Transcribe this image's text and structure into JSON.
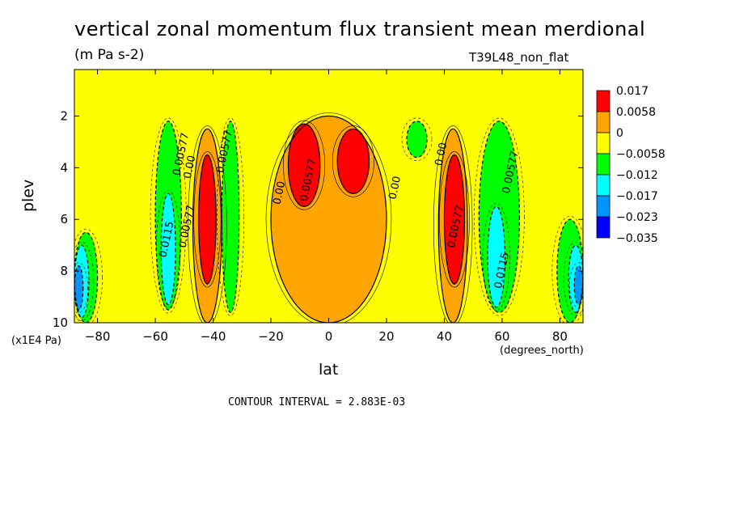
{
  "title": "vertical zonal momentum flux transient mean merdional",
  "units": "(m Pa s-2)",
  "run_label": "T39L48_non_flat",
  "contour_interval_text": "CONTOUR INTERVAL = 2.883E-03",
  "y_unit_text": "(x1E4 Pa)",
  "x_unit_text": "(degrees_north)",
  "chart_data": {
    "type": "heatmap",
    "xlabel": "lat",
    "ylabel": "plev",
    "x_ticks": [
      -80,
      -60,
      -40,
      -20,
      0,
      20,
      40,
      60,
      80
    ],
    "y_ticks": [
      2,
      4,
      6,
      8,
      10
    ],
    "xlim": [
      -88,
      88
    ],
    "ylim": [
      0.2,
      10
    ],
    "y_inverted": true,
    "legend": {
      "position": "right",
      "levels": [
        "0.017",
        "0.0058",
        "0",
        "-0.0058",
        "-0.012",
        "-0.017",
        "-0.023",
        "-0.035"
      ],
      "colors": [
        "#ff0000",
        "#ffa500",
        "#ffff00",
        "#00ff00",
        "#00ffff",
        "#0096ff",
        "#0000ff"
      ]
    },
    "regions": [
      {
        "lat_range": [
          -88,
          -80
        ],
        "plev_range": [
          6.5,
          10
        ],
        "level": "-0.012",
        "color": "#00ff00"
      },
      {
        "lat_range": [
          -88,
          -83
        ],
        "plev_range": [
          7,
          9.8
        ],
        "level": "-0.017",
        "color": "#00ffff"
      },
      {
        "lat_range": [
          -88,
          -85
        ],
        "plev_range": [
          7.8,
          9.5
        ],
        "level": "-0.023",
        "color": "#0096ff"
      },
      {
        "lat_range": [
          -60,
          -51
        ],
        "plev_range": [
          2.2,
          9.5
        ],
        "level": "-0.012",
        "color": "#00ff00"
      },
      {
        "lat_range": [
          -58,
          -53
        ],
        "plev_range": [
          5,
          9.3
        ],
        "level": "-0.017",
        "color": "#00ffff"
      },
      {
        "lat_range": [
          -47,
          -37
        ],
        "plev_range": [
          2.5,
          10
        ],
        "level": "0.0058",
        "color": "#ffa500"
      },
      {
        "lat_range": [
          -45,
          -39
        ],
        "plev_range": [
          3.5,
          8.5
        ],
        "level": "0.017",
        "color": "#ff0000"
      },
      {
        "lat_range": [
          -37,
          -31
        ],
        "plev_range": [
          2.2,
          9.6
        ],
        "level": "-0.012",
        "color": "#00ff00"
      },
      {
        "lat_range": [
          -20,
          20
        ],
        "plev_range": [
          2,
          10
        ],
        "level": "0.0058",
        "color": "#ffa500"
      },
      {
        "lat_range": [
          -14,
          -3
        ],
        "plev_range": [
          2.3,
          5.5
        ],
        "level": "0.017",
        "color": "#ff0000"
      },
      {
        "lat_range": [
          3,
          14
        ],
        "plev_range": [
          2.5,
          5
        ],
        "level": "0.017",
        "color": "#ff0000"
      },
      {
        "lat_range": [
          27,
          34
        ],
        "plev_range": [
          2.2,
          3.6
        ],
        "level": "-0.012",
        "color": "#00ff00"
      },
      {
        "lat_range": [
          38,
          48
        ],
        "plev_range": [
          2.5,
          10
        ],
        "level": "0.0058",
        "color": "#ffa500"
      },
      {
        "lat_range": [
          40,
          47
        ],
        "plev_range": [
          3.5,
          8.5
        ],
        "level": "0.017",
        "color": "#ff0000"
      },
      {
        "lat_range": [
          52,
          66
        ],
        "plev_range": [
          2.2,
          9.6
        ],
        "level": "-0.012",
        "color": "#00ff00"
      },
      {
        "lat_range": [
          55,
          61
        ],
        "plev_range": [
          5.5,
          9.4
        ],
        "level": "-0.017",
        "color": "#00ffff"
      },
      {
        "lat_range": [
          79,
          88
        ],
        "plev_range": [
          6,
          10
        ],
        "level": "-0.012",
        "color": "#00ff00"
      },
      {
        "lat_range": [
          83,
          88
        ],
        "plev_range": [
          7,
          9.6
        ],
        "level": "-0.017",
        "color": "#00ffff"
      },
      {
        "lat_range": [
          85,
          88
        ],
        "plev_range": [
          7.8,
          9.3
        ],
        "level": "-0.023",
        "color": "#0096ff"
      }
    ],
    "contour_labels": [
      {
        "text": "0.00577",
        "lat": -50,
        "plev": 3.5
      },
      {
        "text": "0.00",
        "lat": -47,
        "plev": 4
      },
      {
        "text": "0.00577",
        "lat": -35,
        "plev": 3.4
      },
      {
        "text": "0.00577",
        "lat": -48,
        "plev": 6.3
      },
      {
        "text": "0.0115",
        "lat": -55,
        "plev": 6.8
      },
      {
        "text": "0.00",
        "lat": -16,
        "plev": 5
      },
      {
        "text": "0.00577",
        "lat": -6,
        "plev": 4.5
      },
      {
        "text": "0.00",
        "lat": 24,
        "plev": 4.8
      },
      {
        "text": "0.00",
        "lat": 40,
        "plev": 3.5
      },
      {
        "text": "0.00577",
        "lat": 45,
        "plev": 6.3
      },
      {
        "text": "0.00577",
        "lat": 64,
        "plev": 4.2
      },
      {
        "text": "0.0115",
        "lat": 61,
        "plev": 8
      }
    ]
  }
}
